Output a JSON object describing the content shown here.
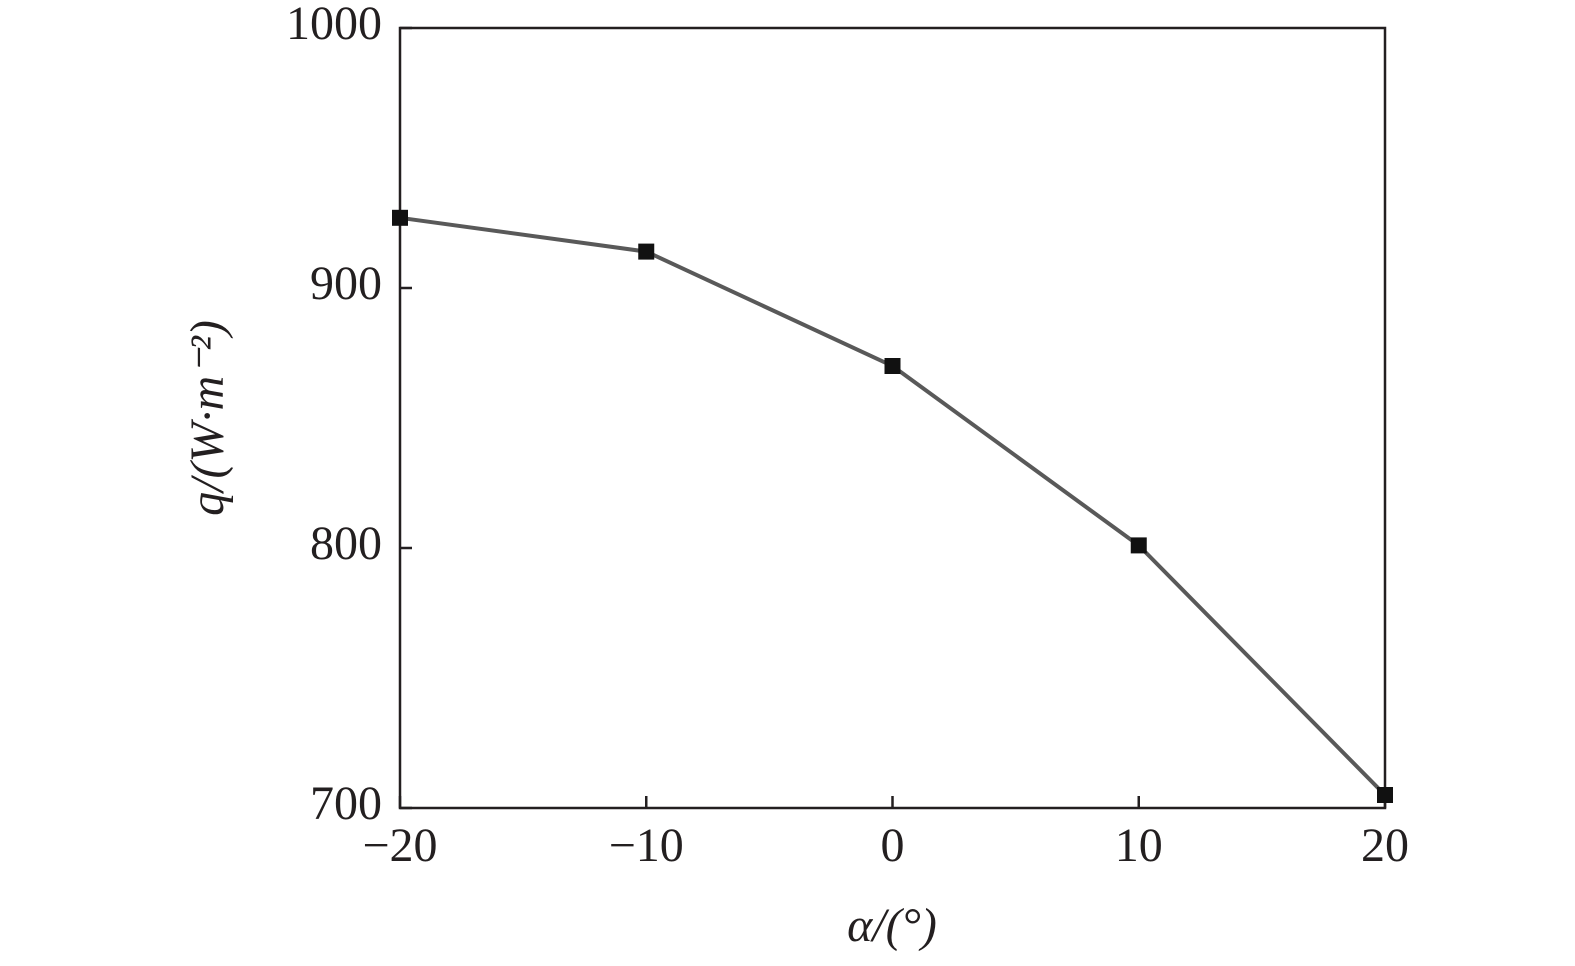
{
  "chart_data": {
    "type": "line",
    "x_label": "α/(°)",
    "y_label": "q/(W·m⁻²)",
    "x": [
      -20,
      -10,
      0,
      10,
      20
    ],
    "values": [
      927,
      914,
      870,
      801,
      705
    ],
    "color": "#595959",
    "marker_color": "#111111",
    "xlim": [
      -20,
      20
    ],
    "xticks": [
      {
        "value": -20,
        "label": "−20"
      },
      {
        "value": -10,
        "label": "−10"
      },
      0,
      10,
      20
    ],
    "ylim": [
      700,
      1000
    ],
    "yticks": [
      700,
      800,
      900,
      1000
    ]
  }
}
